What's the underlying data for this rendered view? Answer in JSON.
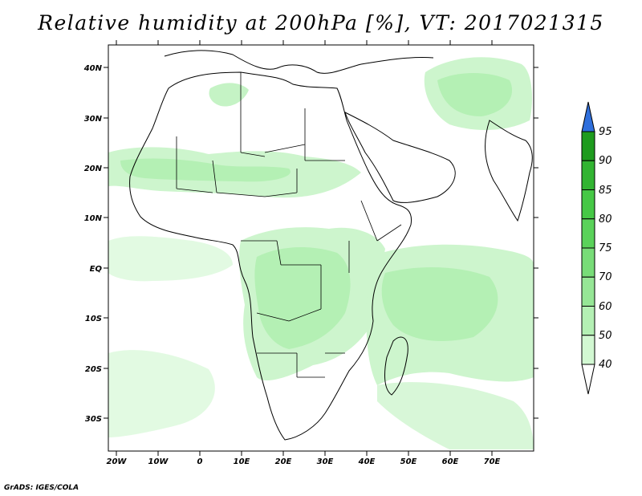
{
  "title": "Relative humidity at 200hPa [%], VT: 2017021315",
  "credit": "GrADS: IGES/COLA",
  "map": {
    "lat_labels": [
      "40N",
      "30N",
      "20N",
      "10N",
      "EQ",
      "10S",
      "20S",
      "30S"
    ],
    "lon_labels": [
      "20W",
      "10W",
      "0",
      "10E",
      "20E",
      "30E",
      "40E",
      "50E",
      "60E",
      "70E"
    ]
  },
  "colorbar": {
    "labels": [
      "95",
      "90",
      "85",
      "80",
      "75",
      "70",
      "60",
      "50",
      "40"
    ],
    "colors": [
      "#1e9b1e",
      "#32b432",
      "#46c846",
      "#5ad25a",
      "#78dc78",
      "#96e696",
      "#b4f0b4",
      "#d2f8d2",
      "#f0fff0"
    ],
    "over_color": "#2f6fdc"
  },
  "chart_data": {
    "type": "heatmap",
    "title": "Relative humidity at 200hPa [%], VT: 2017021315",
    "variable": "Relative humidity at 200hPa",
    "units": "%",
    "valid_time": "2017021315",
    "lon_range": [
      -22,
      80
    ],
    "lat_range": [
      -37,
      45
    ],
    "color_levels": [
      40,
      50,
      60,
      70,
      75,
      80,
      85,
      90,
      95
    ],
    "high_humidity_regions": [
      {
        "lon_range": [
          -22,
          20
        ],
        "lat_range": [
          14,
          24
        ],
        "level": "60-70"
      },
      {
        "lon_range": [
          10,
          45
        ],
        "lat_range": [
          -35,
          12
        ],
        "level": "60-70"
      },
      {
        "lon_range": [
          40,
          80
        ],
        "lat_range": [
          -30,
          5
        ],
        "level": "50-70"
      },
      {
        "lon_range": [
          55,
          75
        ],
        "lat_range": [
          28,
          40
        ],
        "level": "60-70"
      },
      {
        "lon_range": [
          -22,
          0
        ],
        "lat_range": [
          -37,
          5
        ],
        "level": "40-60"
      }
    ]
  }
}
